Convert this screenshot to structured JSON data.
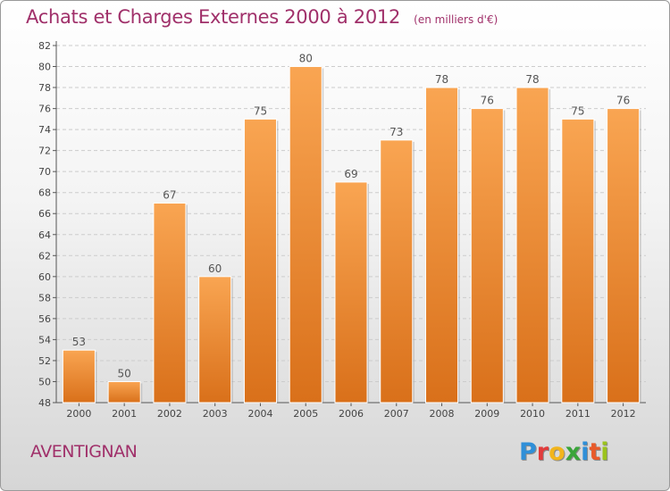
{
  "chart_data": {
    "type": "bar",
    "title": "Achats et Charges Externes 2000 à 2012",
    "unit_note": "(en milliers d'€)",
    "categories": [
      "2000",
      "2001",
      "2002",
      "2003",
      "2004",
      "2005",
      "2006",
      "2007",
      "2008",
      "2009",
      "2010",
      "2011",
      "2012"
    ],
    "values": [
      53,
      50,
      67,
      60,
      75,
      80,
      69,
      73,
      78,
      76,
      78,
      75,
      76
    ],
    "ylim": [
      48,
      82
    ],
    "yticks": [
      48,
      50,
      52,
      54,
      56,
      58,
      60,
      62,
      64,
      66,
      68,
      70,
      72,
      74,
      76,
      78,
      80,
      82
    ],
    "grid": true,
    "legend": "none",
    "bar_color_top": "#f9a552",
    "bar_color_bottom": "#d9701a"
  },
  "footer": {
    "commune": "AVENTIGNAN",
    "logo_letters": [
      "P",
      "r",
      "o",
      "x",
      "i",
      "t",
      "i"
    ],
    "logo_colors": [
      "#2f8fd8",
      "#e23b3b",
      "#f2b51c",
      "#3aa53a",
      "#2f8fd8",
      "#e85a2a",
      "#9bc31c"
    ]
  }
}
